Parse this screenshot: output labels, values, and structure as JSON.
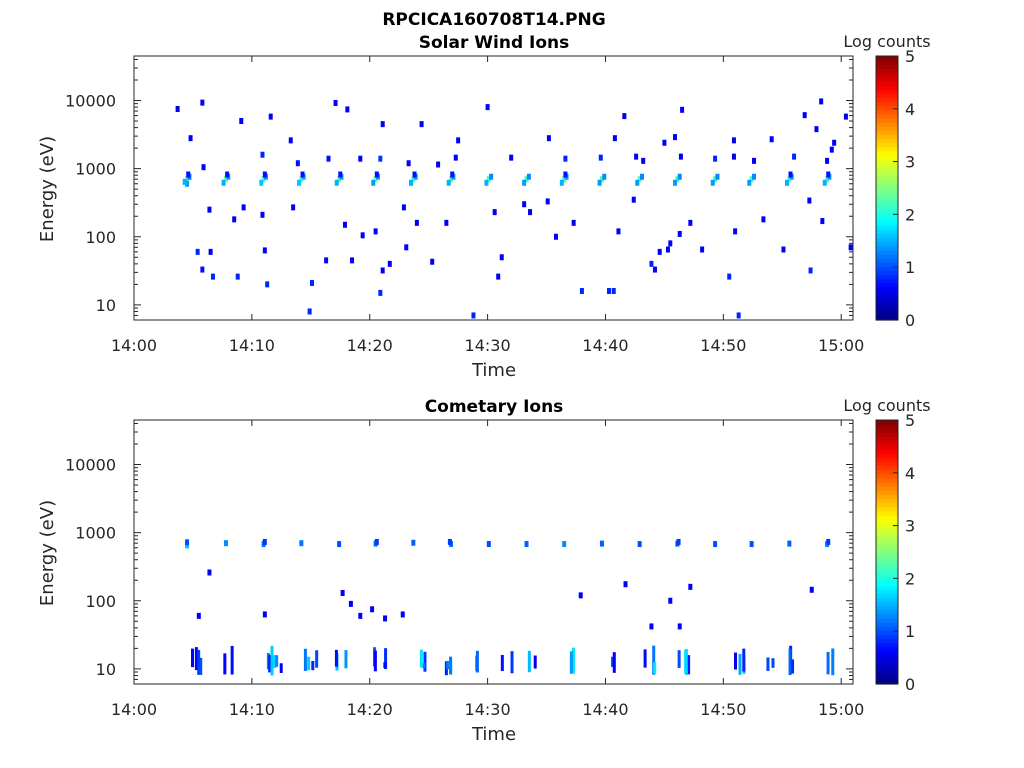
{
  "figure": {
    "title": "RPCICA160708T14.PNG"
  },
  "colorbar": {
    "label": "Log counts",
    "ticks": [
      "0",
      "1",
      "2",
      "3",
      "4",
      "5"
    ],
    "colormap": "jet",
    "range": [
      0,
      5
    ]
  },
  "chart_data": [
    {
      "type": "heatmap",
      "title": "Solar Wind Ions",
      "xlabel": "Time",
      "ylabel": "Energy (eV)",
      "x_range_minutes": [
        0,
        61
      ],
      "x_ticks": [
        "14:00",
        "14:10",
        "14:20",
        "14:30",
        "14:40",
        "14:50",
        "15:00"
      ],
      "y_scale": "log",
      "y_range": [
        6,
        45000
      ],
      "y_ticks": [
        "10",
        "100",
        "1000",
        "10000"
      ],
      "value": "log10 counts",
      "points": [
        [
          4.5,
          700,
          2.4
        ],
        [
          4.5,
          600,
          1.4
        ],
        [
          4.3,
          640,
          1.5
        ],
        [
          4.7,
          760,
          1.2
        ],
        [
          4.6,
          820,
          0.7
        ],
        [
          7.8,
          700,
          2.4
        ],
        [
          7.6,
          620,
          1.5
        ],
        [
          8.0,
          760,
          1.4
        ],
        [
          7.9,
          820,
          0.7
        ],
        [
          11.0,
          700,
          2.3
        ],
        [
          10.8,
          620,
          1.6
        ],
        [
          11.2,
          760,
          1.4
        ],
        [
          11.1,
          820,
          0.7
        ],
        [
          14.2,
          700,
          2.3
        ],
        [
          14.0,
          620,
          1.6
        ],
        [
          14.4,
          760,
          1.5
        ],
        [
          14.3,
          820,
          0.7
        ],
        [
          17.4,
          700,
          2.4
        ],
        [
          17.2,
          620,
          1.5
        ],
        [
          17.6,
          760,
          1.4
        ],
        [
          17.5,
          820,
          0.7
        ],
        [
          20.5,
          700,
          2.4
        ],
        [
          20.3,
          620,
          1.4
        ],
        [
          20.7,
          760,
          1.4
        ],
        [
          20.6,
          820,
          0.7
        ],
        [
          23.7,
          700,
          2.3
        ],
        [
          23.5,
          620,
          1.5
        ],
        [
          23.9,
          760,
          1.4
        ],
        [
          23.8,
          820,
          0.7
        ],
        [
          26.9,
          700,
          2.4
        ],
        [
          26.7,
          620,
          1.5
        ],
        [
          27.1,
          760,
          1.4
        ],
        [
          27.0,
          820,
          0.7
        ],
        [
          30.1,
          700,
          2.2
        ],
        [
          29.9,
          620,
          1.5
        ],
        [
          30.3,
          760,
          1.3
        ],
        [
          33.3,
          700,
          2.2
        ],
        [
          33.1,
          620,
          1.4
        ],
        [
          33.5,
          760,
          1.3
        ],
        [
          36.5,
          700,
          2.3
        ],
        [
          36.3,
          620,
          1.5
        ],
        [
          36.7,
          760,
          1.4
        ],
        [
          36.6,
          820,
          0.7
        ],
        [
          39.7,
          700,
          2.2
        ],
        [
          39.5,
          620,
          1.4
        ],
        [
          39.9,
          760,
          1.3
        ],
        [
          42.9,
          700,
          2.3
        ],
        [
          42.7,
          620,
          1.4
        ],
        [
          43.1,
          760,
          1.3
        ],
        [
          46.1,
          700,
          2.2
        ],
        [
          45.9,
          620,
          1.4
        ],
        [
          46.3,
          760,
          1.3
        ],
        [
          49.3,
          700,
          2.2
        ],
        [
          49.1,
          620,
          1.4
        ],
        [
          49.5,
          760,
          1.3
        ],
        [
          52.4,
          700,
          2.2
        ],
        [
          52.2,
          620,
          1.4
        ],
        [
          52.6,
          760,
          1.3
        ],
        [
          55.6,
          700,
          2.3
        ],
        [
          55.4,
          620,
          1.5
        ],
        [
          55.8,
          760,
          1.4
        ],
        [
          55.7,
          820,
          0.7
        ],
        [
          58.8,
          700,
          2.3
        ],
        [
          58.6,
          620,
          1.5
        ],
        [
          59.0,
          760,
          1.4
        ],
        [
          58.9,
          820,
          0.7
        ],
        [
          3.7,
          7500,
          0.6
        ],
        [
          5.8,
          9300,
          0.6
        ],
        [
          9.1,
          5000,
          0.6
        ],
        [
          11.6,
          5800,
          0.6
        ],
        [
          17.1,
          9200,
          0.6
        ],
        [
          18.1,
          7400,
          0.6
        ],
        [
          21.1,
          4500,
          0.6
        ],
        [
          24.4,
          4500,
          0.6
        ],
        [
          30.0,
          8000,
          0.6
        ],
        [
          41.6,
          5900,
          0.6
        ],
        [
          46.5,
          7300,
          0.6
        ],
        [
          56.9,
          6100,
          0.6
        ],
        [
          58.3,
          9700,
          0.6
        ],
        [
          60.4,
          5800,
          0.6
        ],
        [
          4.8,
          2800,
          0.6
        ],
        [
          13.3,
          2600,
          0.6
        ],
        [
          27.5,
          2600,
          0.6
        ],
        [
          35.2,
          2800,
          0.6
        ],
        [
          40.8,
          2800,
          0.6
        ],
        [
          45.0,
          2400,
          0.6
        ],
        [
          45.9,
          2900,
          0.6
        ],
        [
          50.9,
          2600,
          0.6
        ],
        [
          54.1,
          2700,
          0.6
        ],
        [
          57.9,
          3800,
          0.6
        ],
        [
          59.4,
          2400,
          0.6
        ],
        [
          5.9,
          1050,
          0.6
        ],
        [
          10.9,
          1600,
          0.8
        ],
        [
          13.9,
          1200,
          0.7
        ],
        [
          16.5,
          1400,
          0.7
        ],
        [
          19.2,
          1400,
          0.6
        ],
        [
          20.9,
          1400,
          0.9
        ],
        [
          23.3,
          1200,
          0.6
        ],
        [
          25.8,
          1150,
          0.6
        ],
        [
          27.3,
          1450,
          0.6
        ],
        [
          32.0,
          1450,
          0.6
        ],
        [
          36.6,
          1400,
          0.8
        ],
        [
          39.6,
          1450,
          0.8
        ],
        [
          42.6,
          1500,
          0.6
        ],
        [
          43.2,
          1300,
          0.6
        ],
        [
          46.4,
          1500,
          0.6
        ],
        [
          49.3,
          1400,
          0.8
        ],
        [
          50.9,
          1500,
          0.6
        ],
        [
          52.6,
          1300,
          0.6
        ],
        [
          56.0,
          1500,
          0.8
        ],
        [
          58.8,
          1300,
          0.6
        ],
        [
          59.2,
          1900,
          0.6
        ],
        [
          6.4,
          250,
          0.6
        ],
        [
          9.3,
          270,
          0.6
        ],
        [
          10.9,
          210,
          0.6
        ],
        [
          13.5,
          270,
          0.6
        ],
        [
          22.9,
          270,
          0.6
        ],
        [
          24.0,
          160,
          0.6
        ],
        [
          26.5,
          160,
          0.6
        ],
        [
          30.6,
          230,
          0.6
        ],
        [
          33.1,
          300,
          0.6
        ],
        [
          33.6,
          230,
          0.6
        ],
        [
          35.1,
          330,
          0.6
        ],
        [
          37.3,
          160,
          0.6
        ],
        [
          42.4,
          350,
          0.6
        ],
        [
          47.2,
          160,
          0.6
        ],
        [
          53.4,
          180,
          0.6
        ],
        [
          57.3,
          340,
          0.6
        ],
        [
          58.4,
          170,
          0.6
        ],
        [
          5.4,
          60,
          0.8
        ],
        [
          6.5,
          60,
          0.6
        ],
        [
          8.5,
          180,
          0.6
        ],
        [
          11.1,
          63,
          0.6
        ],
        [
          17.9,
          150,
          0.6
        ],
        [
          19.4,
          105,
          0.6
        ],
        [
          20.5,
          120,
          0.6
        ],
        [
          23.1,
          70,
          0.6
        ],
        [
          31.2,
          50,
          0.6
        ],
        [
          35.8,
          100,
          0.6
        ],
        [
          41.1,
          120,
          0.6
        ],
        [
          44.6,
          60,
          0.6
        ],
        [
          45.3,
          65,
          0.6
        ],
        [
          45.5,
          80,
          0.6
        ],
        [
          46.3,
          110,
          0.6
        ],
        [
          48.2,
          65,
          0.6
        ],
        [
          51.0,
          120,
          0.6
        ],
        [
          55.1,
          65,
          0.6
        ],
        [
          60.8,
          70,
          0.6
        ],
        [
          5.8,
          33,
          0.7
        ],
        [
          6.7,
          26,
          0.8
        ],
        [
          8.8,
          26,
          0.8
        ],
        [
          11.3,
          20,
          0.8
        ],
        [
          14.9,
          8,
          0.8
        ],
        [
          15.1,
          21,
          0.8
        ],
        [
          16.3,
          45,
          0.6
        ],
        [
          18.5,
          45,
          0.6
        ],
        [
          21.1,
          32,
          0.6
        ],
        [
          20.9,
          15,
          0.8
        ],
        [
          21.7,
          40,
          0.6
        ],
        [
          25.3,
          43,
          0.6
        ],
        [
          30.9,
          26,
          0.6
        ],
        [
          38.0,
          16,
          0.8
        ],
        [
          40.3,
          16,
          0.8
        ],
        [
          40.7,
          16,
          0.8
        ],
        [
          43.9,
          40,
          0.8
        ],
        [
          44.2,
          33,
          0.6
        ],
        [
          50.5,
          26,
          0.8
        ],
        [
          57.4,
          32,
          0.8
        ],
        [
          51.3,
          7,
          0.8
        ],
        [
          28.8,
          7,
          0.8
        ]
      ]
    },
    {
      "type": "heatmap",
      "title": "Cometary Ions",
      "xlabel": "Time",
      "ylabel": "Energy (eV)",
      "x_range_minutes": [
        0,
        61
      ],
      "x_ticks": [
        "14:00",
        "14:10",
        "14:20",
        "14:30",
        "14:40",
        "14:50",
        "15:00"
      ],
      "y_scale": "log",
      "y_range": [
        6,
        45000
      ],
      "y_ticks": [
        "10",
        "100",
        "1000",
        "10000"
      ],
      "value": "log10 counts",
      "points": [
        [
          4.5,
          650,
          1.6
        ],
        [
          4.5,
          720,
          1.0
        ],
        [
          7.8,
          700,
          1.3
        ],
        [
          11.0,
          680,
          1.2
        ],
        [
          11.1,
          730,
          0.9
        ],
        [
          14.2,
          700,
          1.2
        ],
        [
          17.4,
          680,
          1.0
        ],
        [
          20.5,
          690,
          1.2
        ],
        [
          20.6,
          730,
          0.9
        ],
        [
          23.7,
          710,
          1.1
        ],
        [
          26.9,
          680,
          1.2
        ],
        [
          26.8,
          730,
          0.9
        ],
        [
          30.1,
          680,
          1.0
        ],
        [
          33.3,
          680,
          1.1
        ],
        [
          36.5,
          680,
          1.3
        ],
        [
          39.7,
          690,
          1.1
        ],
        [
          42.9,
          680,
          1.0
        ],
        [
          46.1,
          690,
          1.1
        ],
        [
          46.2,
          730,
          0.9
        ],
        [
          49.3,
          680,
          1.0
        ],
        [
          52.4,
          680,
          1.0
        ],
        [
          55.6,
          690,
          1.1
        ],
        [
          58.8,
          680,
          1.3
        ],
        [
          58.9,
          730,
          0.9
        ],
        [
          5.5,
          60,
          0.6
        ],
        [
          6.4,
          260,
          0.6
        ],
        [
          11.1,
          63,
          0.6
        ],
        [
          17.7,
          130,
          0.6
        ],
        [
          18.4,
          90,
          0.6
        ],
        [
          19.2,
          60,
          0.6
        ],
        [
          20.2,
          75,
          0.6
        ],
        [
          21.3,
          55,
          0.6
        ],
        [
          22.8,
          63,
          0.6
        ],
        [
          37.9,
          120,
          0.6
        ],
        [
          41.7,
          175,
          0.6
        ],
        [
          43.9,
          42,
          0.6
        ],
        [
          45.5,
          100,
          0.6
        ],
        [
          47.2,
          160,
          0.6
        ],
        [
          57.5,
          145,
          0.6
        ],
        [
          46.3,
          42,
          0.6
        ]
      ],
      "low_energy_bursts_minutes": [
        5.2,
        8.2,
        11.5,
        12.3,
        15.0,
        17.6,
        21.0,
        24.1,
        26.8,
        29.5,
        31.8,
        34.0,
        36.9,
        40.2,
        43.7,
        46.8,
        51.3,
        53.7,
        56.0,
        59.0
      ]
    }
  ]
}
